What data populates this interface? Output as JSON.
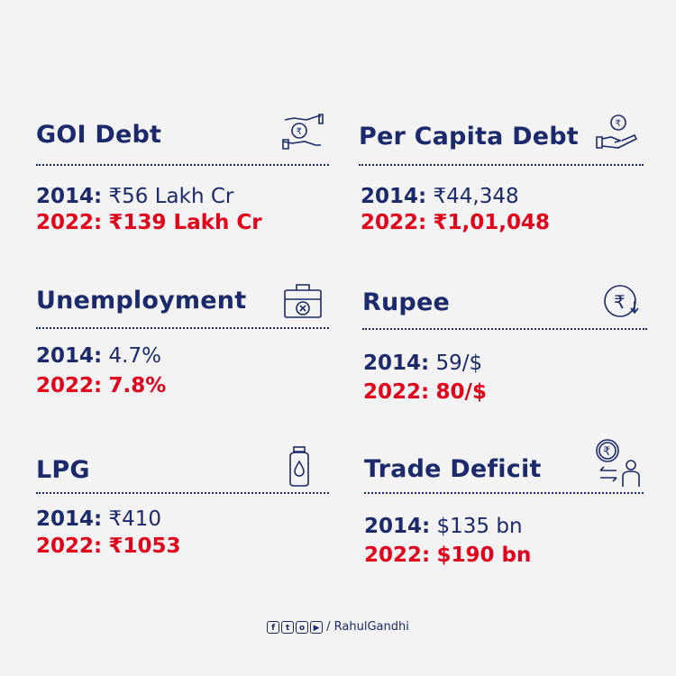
{
  "cards": [
    {
      "title": "GOI Debt",
      "icon": "hand-rupee-icon",
      "y2014_label": "2014:",
      "y2014_value": "₹56 Lakh Cr",
      "y2022_label": "2022:",
      "y2022_value": "₹139 Lakh Cr"
    },
    {
      "title": "Per Capita Debt",
      "icon": "hand-coin-icon",
      "y2014_label": "2014:",
      "y2014_value": "₹44,348",
      "y2022_label": "2022:",
      "y2022_value": "₹1,01,048"
    },
    {
      "title": "Unemployment",
      "icon": "briefcase-cross-icon",
      "y2014_label": "2014:",
      "y2014_value": "4.7%",
      "y2022_label": "2022:",
      "y2022_value": "7.8%"
    },
    {
      "title": "Rupee",
      "icon": "rupee-down-icon",
      "y2014_label": "2014:",
      "y2014_value": "59/$",
      "y2022_label": "2022:",
      "y2022_value": "80/$"
    },
    {
      "title": "LPG",
      "icon": "gas-cylinder-icon",
      "y2014_label": "2014:",
      "y2014_value": "₹410",
      "y2022_label": "2022:",
      "y2022_value": "₹1053"
    },
    {
      "title": "Trade Deficit",
      "icon": "trade-exchange-icon",
      "y2014_label": "2014:",
      "y2014_value": "$135 bn",
      "y2022_label": "2022:",
      "y2022_value": "$190 bn"
    }
  ],
  "footer": {
    "handle": "/ RahulGandhi",
    "social_icons": [
      "facebook-icon",
      "twitter-icon",
      "instagram-icon",
      "youtube-icon"
    ]
  },
  "colors": {
    "background": "#f4f3f3",
    "blue": "#1a2a6c",
    "red": "#e3001b"
  }
}
